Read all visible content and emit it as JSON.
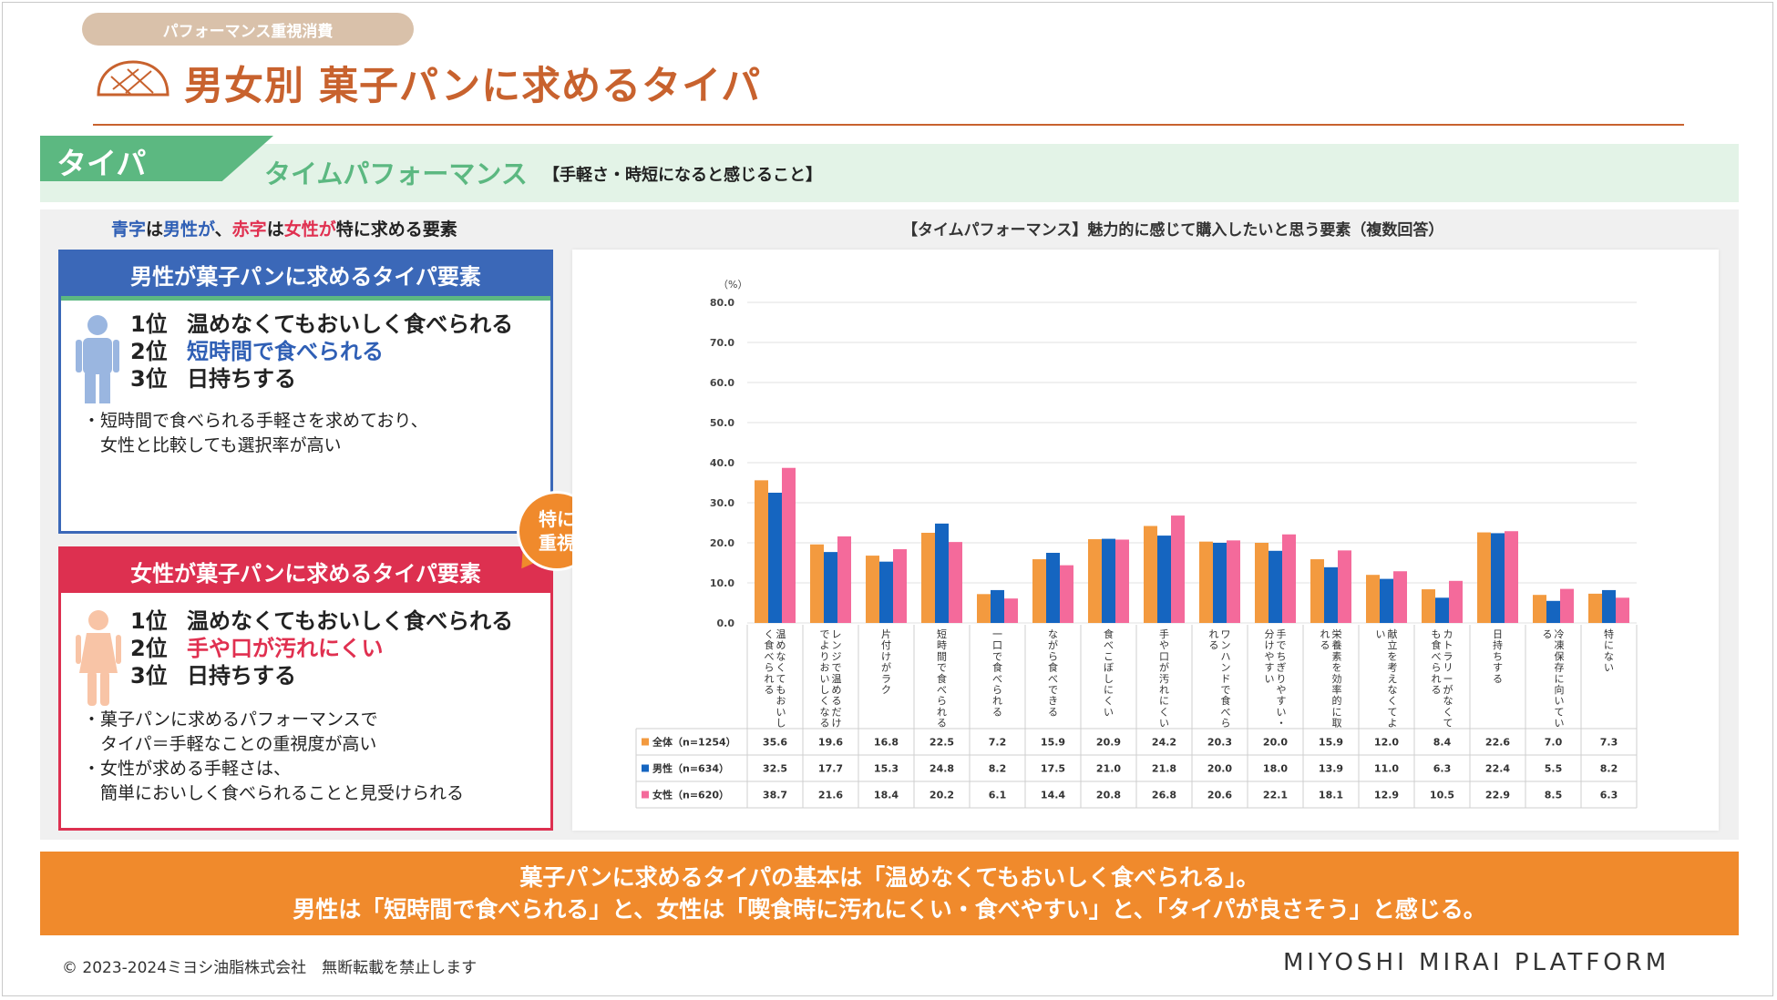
{
  "header": {
    "category": "パフォーマンス重視消費",
    "title": "男女別 菓子パンに求めるタイパ"
  },
  "section": {
    "tag": "タイパ",
    "title": "タイムパフォーマンス",
    "note": "【手軽さ・時短になると感じること】"
  },
  "legend_line": {
    "p1": "青字",
    "p2": "は",
    "p3": "男性が",
    "p4": "、",
    "p5": "赤字",
    "p6": "は",
    "p7": "女性が",
    "p8": "特に求める要素"
  },
  "male_card": {
    "header": "男性が菓子パンに求めるタイパ要素",
    "ranks": [
      {
        "rank": "1位",
        "text": "温めなくてもおいしく食べられる"
      },
      {
        "rank": "2位",
        "text": "短時間で食べられる"
      },
      {
        "rank": "3位",
        "text": "日持ちする"
      }
    ],
    "notes": [
      "・短時間で食べられる手軽さを求めており、",
      "　女性と比較しても選択率が高い"
    ]
  },
  "female_card": {
    "header": "女性が菓子パンに求めるタイパ要素",
    "ranks": [
      {
        "rank": "1位",
        "text": "温めなくてもおいしく食べられる"
      },
      {
        "rank": "2位",
        "text": "手や口が汚れにくい"
      },
      {
        "rank": "3位",
        "text": "日持ちする"
      }
    ],
    "notes": [
      "・菓子パンに求めるパフォーマンスで",
      "　タイパ＝手軽なことの重視度が高い",
      "・女性が求める手軽さは、",
      "　簡単においしく食べられることと見受けられる"
    ]
  },
  "bubble": {
    "line1": "特に",
    "line2": "重視"
  },
  "chart_title": "【タイムパフォーマンス】魅力的に感じて購入したいと思う要素（複数回答）",
  "chart_data": {
    "type": "bar",
    "unit": "（%）",
    "ylim": [
      0,
      80
    ],
    "yticks": [
      "0.0",
      "10.0",
      "20.0",
      "30.0",
      "40.0",
      "50.0",
      "60.0",
      "70.0",
      "80.0"
    ],
    "grid": true,
    "categories": [
      "温めなくてもおいしく食べられる",
      "レンジで温めるだけでよりおいしくなる",
      "片付けがラク",
      "短時間で食べられる",
      "一口で食べられる",
      "ながら食べできる",
      "食べこぼしにくい",
      "手や口が汚れにくい",
      "ワンハンドで食べられる",
      "手でちぎりやすい・分けやすい",
      "栄養素を効率的に取れる",
      "献立を考えなくてよい",
      "カトラリーがなくても食べられる",
      "日持ちする",
      "冷凍保存に向いている",
      "特にない"
    ],
    "series": [
      {
        "name": "全体（n=1254）",
        "color": "#f39a3f",
        "values": [
          35.6,
          19.6,
          16.8,
          22.5,
          7.2,
          15.9,
          20.9,
          24.2,
          20.3,
          20.0,
          15.9,
          12.0,
          8.4,
          22.6,
          7.0,
          7.3
        ]
      },
      {
        "name": "男性（n=634）",
        "color": "#1565c0",
        "values": [
          32.5,
          17.7,
          15.3,
          24.8,
          8.2,
          17.5,
          21.0,
          21.8,
          20.0,
          18.0,
          13.9,
          11.0,
          6.3,
          22.4,
          5.5,
          8.2
        ]
      },
      {
        "name": "女性（n=620）",
        "color": "#f46a9b",
        "values": [
          38.7,
          21.6,
          18.4,
          20.2,
          6.1,
          14.4,
          20.8,
          26.8,
          20.6,
          22.1,
          18.1,
          12.9,
          10.5,
          22.9,
          8.5,
          6.3
        ]
      }
    ]
  },
  "summary": {
    "line1": "菓子パンに求めるタイパの基本は「温めなくてもおいしく食べられる」。",
    "line2": "男性は「短時間で食べられる」と、女性は「喫食時に汚れにくい・食べやすい」と、「タイパが良さそう」と感じる。"
  },
  "footer": {
    "copyright": "© 2023-2024ミヨシ油脂株式会社　無断転載を禁止します",
    "brand": "MIYOSHI MIRAI PLATFORM"
  },
  "colors": {
    "accent": "#c8622e",
    "green": "#5cb881",
    "male": "#3b68b8",
    "female": "#dd3050",
    "orange": "#f08a2c"
  }
}
